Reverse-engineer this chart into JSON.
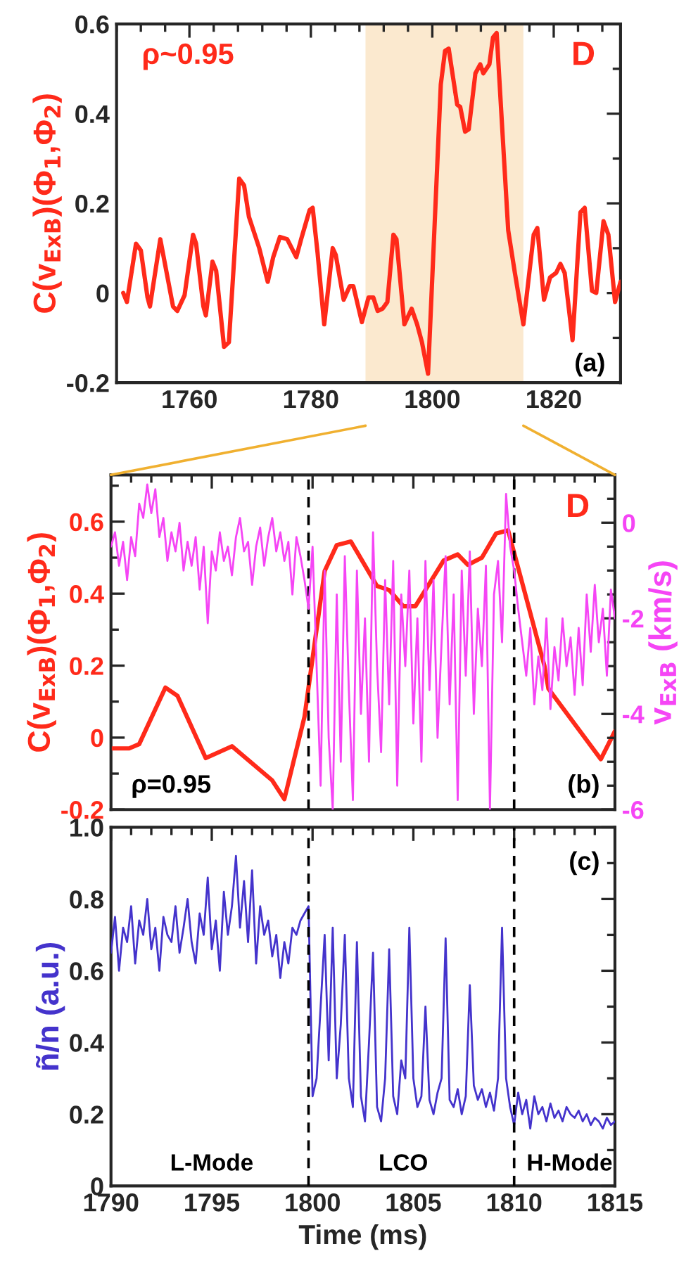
{
  "chart_data": [
    {
      "type": "line",
      "ylabel": "C(v$_{ExB}$)(Φ$_{1}$,Φ$_{2}$)",
      "annotations": [
        "ρ~0.95",
        "D",
        "(a)"
      ],
      "xlim": [
        1748,
        1831
      ],
      "xticks": [
        1760,
        1780,
        1800,
        1820
      ],
      "ylim": [
        -0.2,
        0.6
      ],
      "yticks": [
        -0.2,
        0,
        0.2,
        0.4,
        0.6
      ],
      "bands": [
        {
          "axis": "x",
          "from": 1789,
          "to": 1815,
          "color": "#fbe9cf"
        }
      ],
      "series": [
        {
          "color": "#ff2a1a",
          "x": [
            1749.1,
            1749.7,
            1751.2,
            1752.0,
            1753.1,
            1753.5,
            1755.2,
            1757.3,
            1758.0,
            1759.2,
            1760.6,
            1761.1,
            1762.3,
            1762.7,
            1763.8,
            1764.4,
            1765.7,
            1766.5,
            1768.2,
            1769.0,
            1769.8,
            1771.5,
            1772.9,
            1773.8,
            1774.9,
            1776.1,
            1777.6,
            1778.4,
            1779.8,
            1780.3,
            1781.1,
            1782.2,
            1783.6,
            1784.1,
            1785.4,
            1786.4,
            1787.0,
            1788.4,
            1789.5,
            1790.3,
            1791.0,
            1791.8,
            1792.6,
            1793.6,
            1794.1,
            1795.4,
            1796.6,
            1797.5,
            1798.3,
            1799.3,
            1801.4,
            1802.1,
            1802.7,
            1804.1,
            1804.6,
            1805.4,
            1806.0,
            1807.1,
            1807.9,
            1808.4,
            1809.4,
            1810.0,
            1810.6,
            1812.5,
            1813.6,
            1815.0,
            1816.7,
            1817.3,
            1818.4,
            1819.4,
            1820.4,
            1821.1,
            1821.8,
            1823.1,
            1824.4,
            1825.1,
            1826.3,
            1827.0,
            1828.2,
            1829.0,
            1830.1,
            1831.0
          ],
          "values": [
            0.0,
            -0.02,
            0.11,
            0.095,
            -0.01,
            -0.03,
            0.12,
            -0.03,
            -0.04,
            -0.005,
            0.13,
            0.11,
            -0.03,
            -0.05,
            0.07,
            0.05,
            -0.12,
            -0.11,
            0.255,
            0.24,
            0.17,
            0.1,
            0.025,
            0.08,
            0.125,
            0.12,
            0.08,
            0.12,
            0.185,
            0.19,
            0.09,
            -0.07,
            0.1,
            0.085,
            -0.015,
            0.015,
            0.015,
            -0.065,
            -0.01,
            -0.01,
            -0.04,
            -0.035,
            -0.02,
            0.13,
            0.12,
            -0.07,
            -0.035,
            -0.07,
            -0.11,
            -0.18,
            0.465,
            0.54,
            0.545,
            0.42,
            0.415,
            0.36,
            0.365,
            0.49,
            0.51,
            0.49,
            0.51,
            0.57,
            0.58,
            0.14,
            0.045,
            -0.07,
            0.13,
            0.145,
            -0.015,
            0.035,
            0.045,
            0.065,
            0.045,
            -0.105,
            0.18,
            0.19,
            0.005,
            0.0,
            0.16,
            0.13,
            -0.02,
            0.025
          ]
        }
      ]
    },
    {
      "type": "line",
      "ylabel": "C(v$_{ExB}$)(Φ$_{1}$,Φ$_{2}$)",
      "y2label": "v$_{ExB}$ (km/s)",
      "annotations": [
        "D",
        "ρ=0.95",
        "(b)"
      ],
      "xlim": [
        1790,
        1815
      ],
      "xticks": [
        1790,
        1795,
        1800,
        1805,
        1810,
        1815
      ],
      "tick_labels": "y",
      "ylim": [
        -0.2,
        0.73
      ],
      "yticks": [
        -0.2,
        0,
        0.2,
        0.4,
        0.6
      ],
      "y2lim": [
        -6,
        1
      ],
      "y2ticks": [
        -6,
        -4,
        -2,
        0
      ],
      "ref_lines": [
        {
          "axis": "x",
          "value": 1799.8,
          "color": "#000000",
          "line_style": "dashed"
        },
        {
          "axis": "x",
          "value": 1810,
          "color": "#000000",
          "line_style": "dashed"
        }
      ],
      "x": [
        1790.0,
        1790.2,
        1790.4,
        1790.6,
        1790.8,
        1791.0,
        1791.2,
        1791.4,
        1791.6,
        1791.8,
        1792.0,
        1792.2,
        1792.4,
        1792.6,
        1792.8,
        1793.0,
        1793.2,
        1793.4,
        1793.6,
        1793.8,
        1794.0,
        1794.2,
        1794.4,
        1794.6,
        1794.8,
        1795.0,
        1795.2,
        1795.4,
        1795.6,
        1795.8,
        1796.0,
        1796.2,
        1796.4,
        1796.6,
        1796.8,
        1797.0,
        1797.2,
        1797.4,
        1797.6,
        1797.8,
        1798.0,
        1798.2,
        1798.4,
        1798.6,
        1798.8,
        1799.0,
        1799.2,
        1799.4,
        1799.6,
        1799.8,
        1800.0,
        1800.2,
        1800.4,
        1800.6,
        1800.8,
        1801.0,
        1801.2,
        1801.4,
        1801.6,
        1801.8,
        1802.0,
        1802.2,
        1802.4,
        1802.6,
        1802.8,
        1803.0,
        1803.2,
        1803.4,
        1803.6,
        1803.8,
        1804.0,
        1804.2,
        1804.4,
        1804.6,
        1804.8,
        1805.0,
        1805.2,
        1805.4,
        1805.6,
        1805.8,
        1806.0,
        1806.2,
        1806.4,
        1806.6,
        1806.8,
        1807.0,
        1807.2,
        1807.4,
        1807.6,
        1807.8,
        1808.0,
        1808.2,
        1808.4,
        1808.6,
        1808.8,
        1809.0,
        1809.2,
        1809.4,
        1809.6,
        1809.8,
        1810.0,
        1810.2,
        1810.4,
        1810.6,
        1810.8,
        1811.0,
        1811.2,
        1811.4,
        1811.6,
        1811.8,
        1812.0,
        1812.2,
        1812.4,
        1812.6,
        1812.8,
        1813.0,
        1813.2,
        1813.4,
        1813.6,
        1813.8,
        1814.0,
        1814.2,
        1814.4,
        1814.6,
        1814.8,
        1815.0
      ],
      "series": [
        {
          "color": "#f545f5",
          "axis": "y2",
          "values": [
            -0.5,
            -0.2,
            -0.9,
            -0.4,
            -1.2,
            -0.3,
            -0.7,
            0.4,
            0.1,
            0.8,
            0.2,
            0.7,
            -0.3,
            0.1,
            -0.8,
            -0.2,
            -0.6,
            0.0,
            -1.0,
            -0.4,
            -0.9,
            -0.3,
            -1.4,
            -0.5,
            -2.1,
            -0.6,
            -1.0,
            -0.2,
            -0.8,
            -0.5,
            -1.1,
            -0.3,
            0.1,
            -0.6,
            -0.4,
            -1.3,
            -0.5,
            -0.1,
            -0.9,
            -0.3,
            0.1,
            -0.6,
            -0.2,
            -0.8,
            -0.4,
            -1.5,
            -0.3,
            -0.7,
            -1.2,
            -1.8,
            -0.5,
            -3,
            -5.5,
            -1,
            -4.5,
            -6,
            -1.5,
            -5,
            -0.7,
            -3.5,
            -5.8,
            -1,
            -4,
            -2,
            -5,
            -0.2,
            -3,
            -4.8,
            -1.2,
            -3.8,
            -0.8,
            -5.5,
            -1.5,
            -3,
            -1,
            -4.2,
            -2,
            -5,
            -0.8,
            -3.5,
            -1.2,
            -4.5,
            -2.5,
            -0.7,
            -3.8,
            -1.5,
            -5.8,
            -1,
            -3.2,
            -0.6,
            -4,
            -1.8,
            -3,
            -0.9,
            -6,
            -1.5,
            -0.8,
            -2.5,
            0.6,
            -0.5,
            -1.0,
            -1.8,
            -2.5,
            -3.2,
            -2.2,
            -3.8,
            -2.8,
            -3.5,
            -2.0,
            -3.9,
            -2.6,
            -3.3,
            -2.0,
            -3.0,
            -2.4,
            -3.6,
            -2.2,
            -3.4,
            -1.5,
            -2.7,
            -1.3,
            -2.5,
            -1.8,
            -3.2,
            -1.4,
            -2.0
          ]
        },
        {
          "color": "#ff2a1a",
          "x": [
            1790.05,
            1790.9,
            1791.4,
            1792.7,
            1793.3,
            1794.7,
            1796.0,
            1798.0,
            1798.6,
            1799.6,
            1800.6,
            1801.2,
            1801.9,
            1803.2,
            1803.8,
            1804.5,
            1805.1,
            1806.5,
            1807.2,
            1807.7,
            1808.4,
            1809.1,
            1809.7,
            1811.5,
            1811.7,
            1814.3,
            1815.0
          ],
          "values": [
            -0.03,
            -0.03,
            -0.018,
            0.139,
            0.116,
            -0.057,
            -0.024,
            -0.119,
            -0.171,
            0.058,
            0.463,
            0.535,
            0.545,
            0.421,
            0.41,
            0.365,
            0.365,
            0.492,
            0.509,
            0.48,
            0.5,
            0.567,
            0.576,
            0.2,
            0.136,
            -0.06,
            0.018
          ]
        }
      ]
    },
    {
      "type": "line",
      "xlabel": "Time (ms)",
      "ylabel": "ñ/n (a.u.)",
      "annotations": [
        "(c)",
        "L-Mode",
        "LCO",
        "H-Mode"
      ],
      "xlim": [
        1790,
        1815
      ],
      "xticks": [
        1790,
        1795,
        1800,
        1805,
        1810,
        1815
      ],
      "ylim": [
        0,
        1.0
      ],
      "yticks": [
        0,
        0.2,
        0.4,
        0.6,
        0.8,
        {
          "value": 1.0,
          "label": "1.0"
        }
      ],
      "ref_lines": [
        {
          "axis": "x",
          "value": 1799.8,
          "color": "#000000",
          "line_style": "dashed"
        },
        {
          "axis": "x",
          "value": 1810,
          "color": "#000000",
          "line_style": "dashed"
        }
      ],
      "x": [
        1790.0,
        1790.2,
        1790.4,
        1790.6,
        1790.8,
        1791.0,
        1791.2,
        1791.4,
        1791.6,
        1791.8,
        1792.0,
        1792.2,
        1792.4,
        1792.6,
        1792.8,
        1793.0,
        1793.2,
        1793.4,
        1793.6,
        1793.8,
        1794.0,
        1794.2,
        1794.4,
        1794.6,
        1794.8,
        1795.0,
        1795.2,
        1795.4,
        1795.6,
        1795.8,
        1796.0,
        1796.2,
        1796.4,
        1796.6,
        1796.8,
        1797.0,
        1797.2,
        1797.4,
        1797.6,
        1797.8,
        1798.0,
        1798.2,
        1798.4,
        1798.6,
        1798.8,
        1799.0,
        1799.2,
        1799.4,
        1799.6,
        1799.8,
        1800.0,
        1800.2,
        1800.4,
        1800.6,
        1800.8,
        1801.0,
        1801.2,
        1801.4,
        1801.6,
        1801.8,
        1802.0,
        1802.2,
        1802.4,
        1802.6,
        1802.8,
        1803.0,
        1803.2,
        1803.4,
        1803.6,
        1803.8,
        1804.0,
        1804.2,
        1804.4,
        1804.6,
        1804.8,
        1805.0,
        1805.2,
        1805.4,
        1805.6,
        1805.8,
        1806.0,
        1806.2,
        1806.4,
        1806.6,
        1806.8,
        1807.0,
        1807.2,
        1807.4,
        1807.6,
        1807.8,
        1808.0,
        1808.2,
        1808.4,
        1808.6,
        1808.8,
        1809.0,
        1809.2,
        1809.4,
        1809.6,
        1809.8,
        1810.0,
        1810.2,
        1810.4,
        1810.6,
        1810.8,
        1811.0,
        1811.2,
        1811.4,
        1811.6,
        1811.8,
        1812.0,
        1812.2,
        1812.4,
        1812.6,
        1812.8,
        1813.0,
        1813.2,
        1813.4,
        1813.6,
        1813.8,
        1814.0,
        1814.2,
        1814.4,
        1814.6,
        1814.8,
        1815.0
      ],
      "series": [
        {
          "color": "#4433cc",
          "values": [
            0.65,
            0.75,
            0.6,
            0.72,
            0.68,
            0.78,
            0.62,
            0.74,
            0.7,
            0.8,
            0.66,
            0.72,
            0.6,
            0.75,
            0.7,
            0.68,
            0.78,
            0.65,
            0.72,
            0.8,
            0.68,
            0.62,
            0.76,
            0.7,
            0.86,
            0.66,
            0.74,
            0.6,
            0.82,
            0.7,
            0.78,
            0.92,
            0.72,
            0.85,
            0.68,
            0.88,
            0.62,
            0.78,
            0.7,
            0.74,
            0.64,
            0.7,
            0.58,
            0.68,
            0.62,
            0.72,
            0.7,
            0.74,
            0.76,
            0.78,
            0.25,
            0.3,
            0.5,
            0.7,
            0.35,
            0.72,
            0.3,
            0.45,
            0.7,
            0.3,
            0.22,
            0.68,
            0.25,
            0.18,
            0.4,
            0.65,
            0.22,
            0.18,
            0.3,
            0.66,
            0.25,
            0.2,
            0.35,
            0.3,
            0.72,
            0.3,
            0.22,
            0.25,
            0.5,
            0.24,
            0.2,
            0.26,
            0.3,
            0.69,
            0.24,
            0.22,
            0.27,
            0.2,
            0.25,
            0.56,
            0.28,
            0.24,
            0.27,
            0.22,
            0.26,
            0.21,
            0.3,
            0.72,
            0.3,
            0.22,
            0.17,
            0.26,
            0.2,
            0.24,
            0.16,
            0.25,
            0.2,
            0.22,
            0.18,
            0.23,
            0.19,
            0.21,
            0.18,
            0.22,
            0.2,
            0.19,
            0.21,
            0.18,
            0.2,
            0.17,
            0.19,
            0.18,
            0.16,
            0.19,
            0.17,
            0.18
          ]
        }
      ]
    }
  ]
}
